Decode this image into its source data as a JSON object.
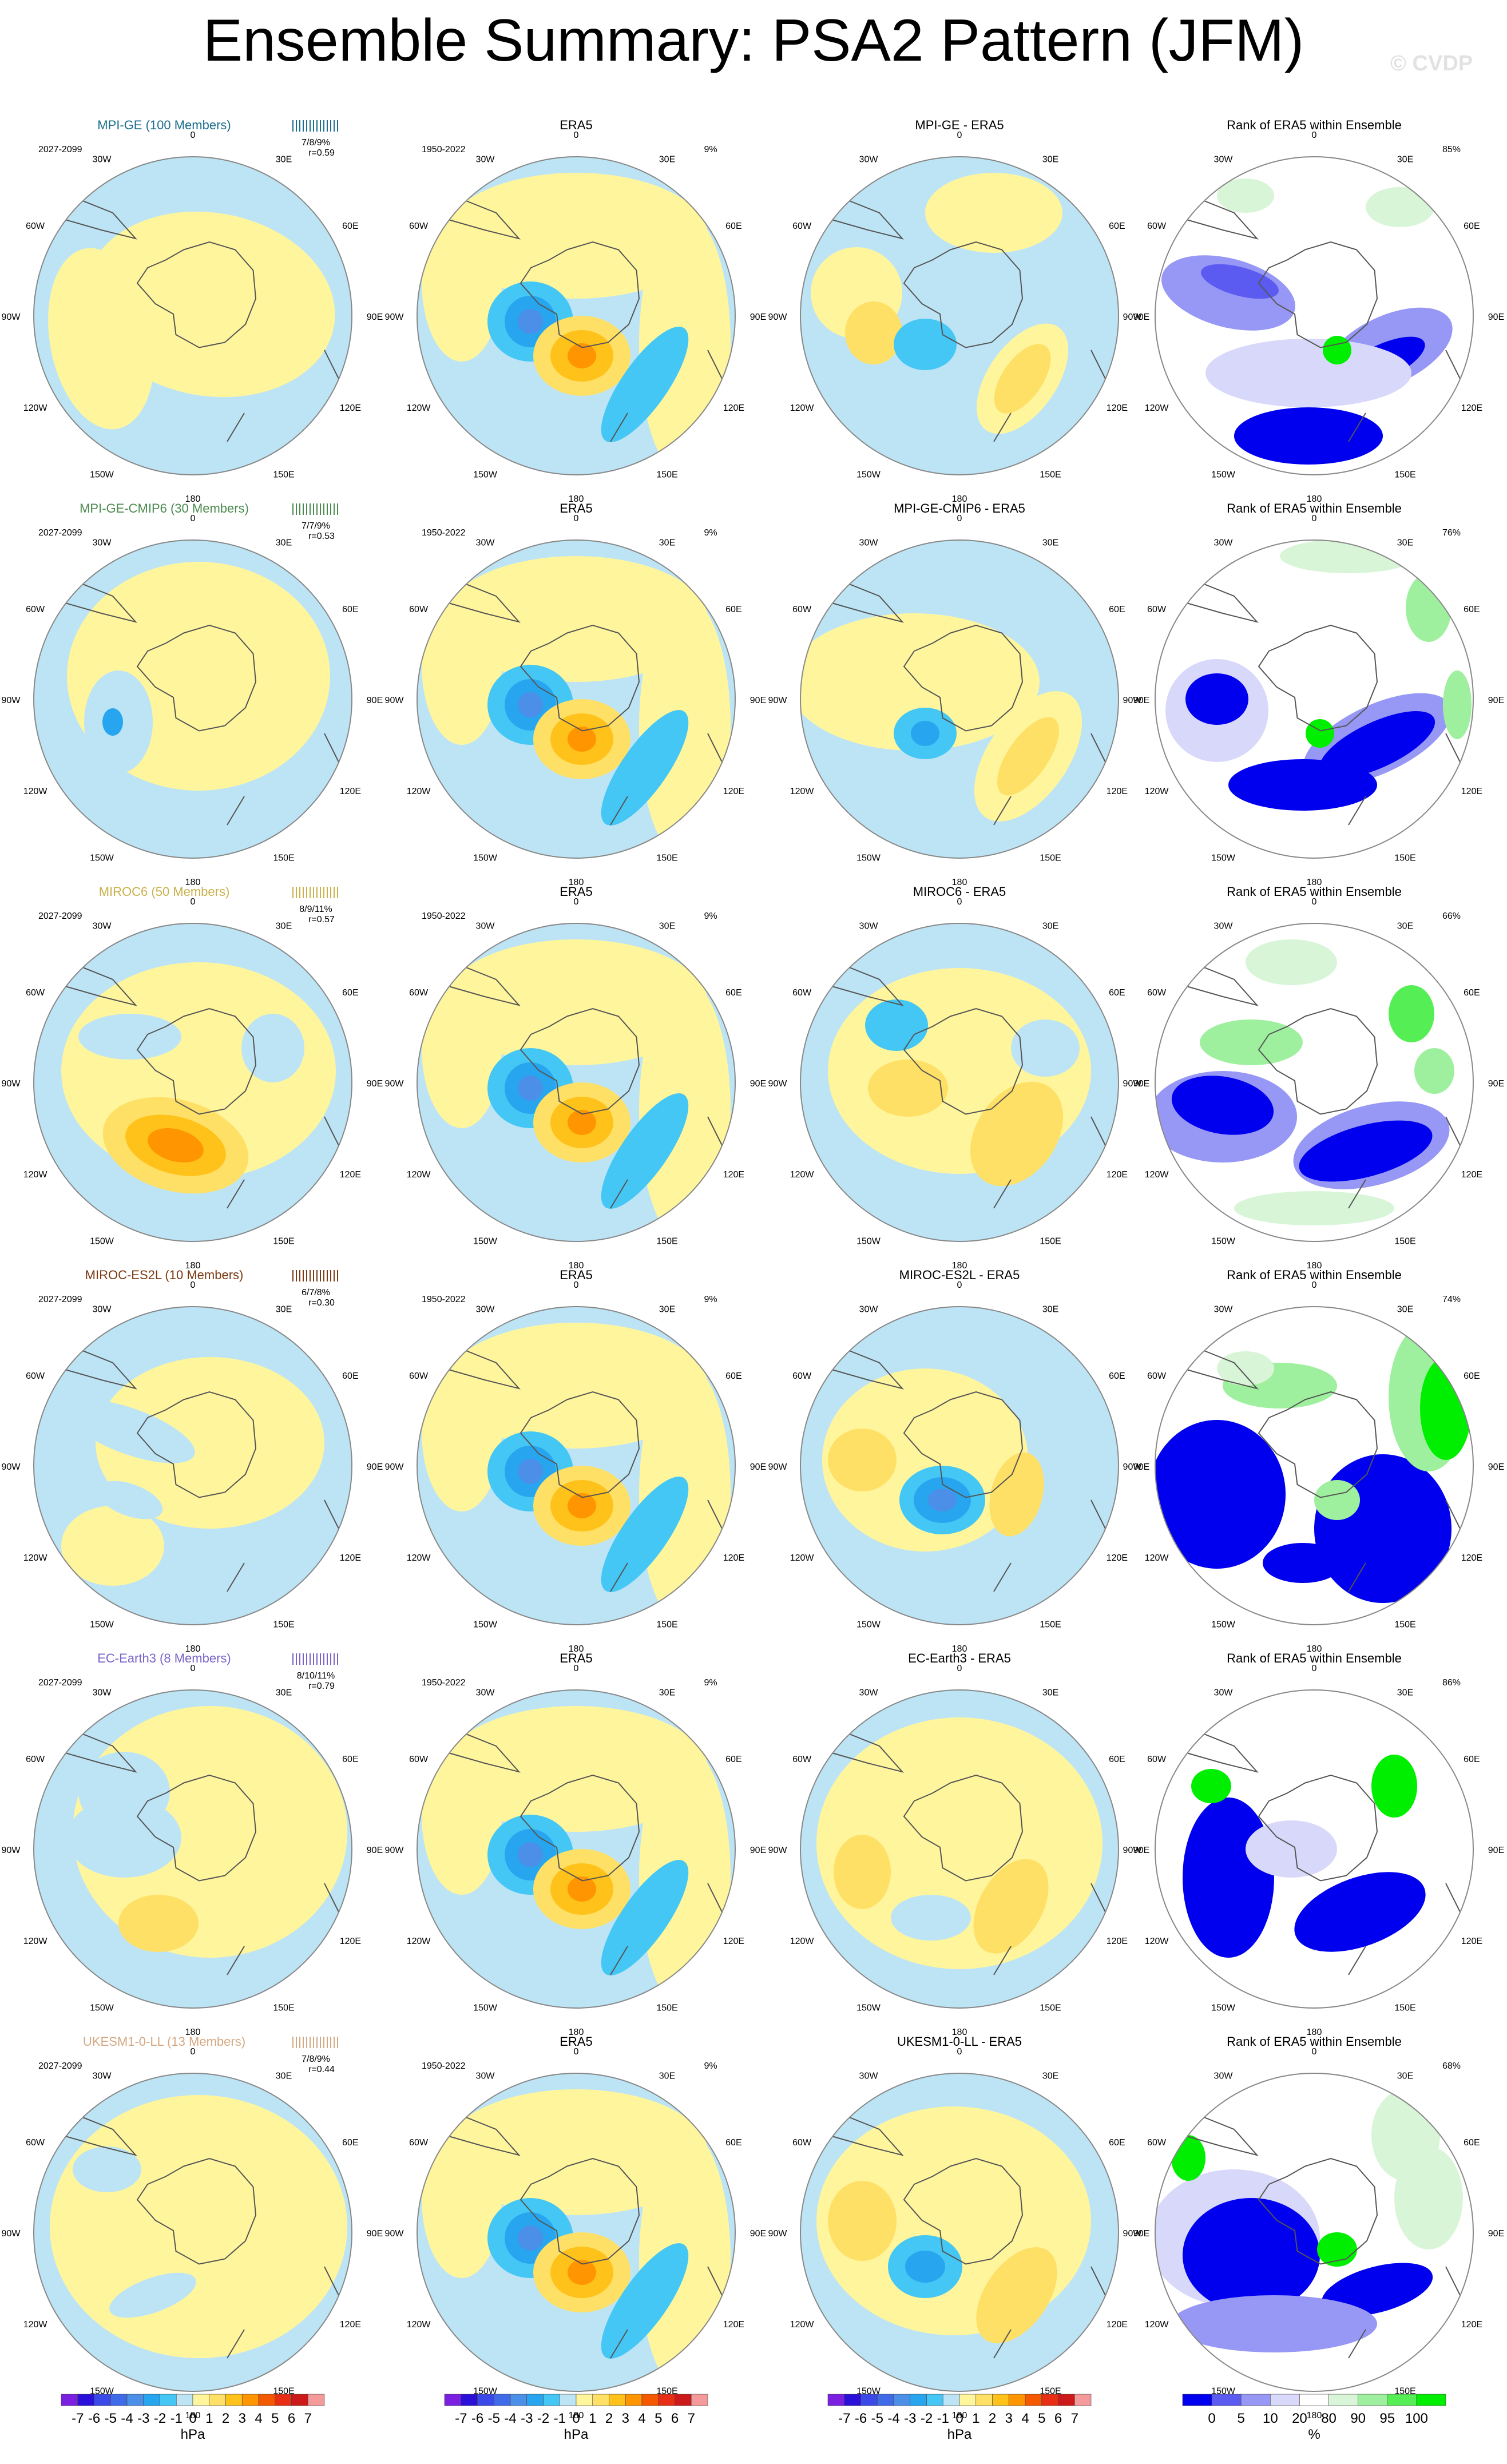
{
  "title": "Ensemble Summary: PSA2 Pattern (JFM)",
  "watermark": "© CVDP",
  "lon_labels": [
    "0",
    "30E",
    "60E",
    "90E",
    "120E",
    "150E",
    "180",
    "150W",
    "120W",
    "90W",
    "60W",
    "30W"
  ],
  "rows": [
    {
      "model": "MPI-GE (100 Members)",
      "color": "#1a6e8e",
      "model_period": "2027-2099",
      "obs_title": "ERA5",
      "obs_period": "1950-2022",
      "obs_pct": "9%",
      "diff_title": "MPI-GE - ERA5",
      "rank_title": "Rank of ERA5 within Ensemble",
      "rank_pct": "85%",
      "stats": "7/8/9%",
      "corr": "r=0.59"
    },
    {
      "model": "MPI-GE-CMIP6 (30 Members)",
      "color": "#4a8a4e",
      "model_period": "2027-2099",
      "obs_title": "ERA5",
      "obs_period": "1950-2022",
      "obs_pct": "9%",
      "diff_title": "MPI-GE-CMIP6 - ERA5",
      "rank_title": "Rank of ERA5 within Ensemble",
      "rank_pct": "76%",
      "stats": "7/7/9%",
      "corr": "r=0.53"
    },
    {
      "model": "MIROC6 (50 Members)",
      "color": "#c9b04a",
      "model_period": "2027-2099",
      "obs_title": "ERA5",
      "obs_period": "1950-2022",
      "obs_pct": "9%",
      "diff_title": "MIROC6 - ERA5",
      "rank_title": "Rank of ERA5 within Ensemble",
      "rank_pct": "66%",
      "stats": "8/9/11%",
      "corr": "r=0.57"
    },
    {
      "model": "MIROC-ES2L (10 Members)",
      "color": "#7a3a14",
      "model_period": "2027-2099",
      "obs_title": "ERA5",
      "obs_period": "1950-2022",
      "obs_pct": "9%",
      "diff_title": "MIROC-ES2L - ERA5",
      "rank_title": "Rank of ERA5 within Ensemble",
      "rank_pct": "74%",
      "stats": "6/7/8%",
      "corr": "r=0.30"
    },
    {
      "model": "EC-Earth3 (8 Members)",
      "color": "#7a62c8",
      "model_period": "2027-2099",
      "obs_title": "ERA5",
      "obs_period": "1950-2022",
      "obs_pct": "9%",
      "diff_title": "EC-Earth3 - ERA5",
      "rank_title": "Rank of ERA5 within Ensemble",
      "rank_pct": "86%",
      "stats": "8/10/11%",
      "corr": "r=0.79"
    },
    {
      "model": "UKESM1-0-LL (13 Members)",
      "color": "#d4a882",
      "model_period": "2027-2099",
      "obs_title": "ERA5",
      "obs_period": "1950-2022",
      "obs_pct": "9%",
      "diff_title": "UKESM1-0-LL - ERA5",
      "rank_title": "Rank of ERA5 within Ensemble",
      "rank_pct": "68%",
      "stats": "7/8/9%",
      "corr": "r=0.44"
    }
  ],
  "chart_data": {
    "type": "heatmap",
    "projection": "south polar stereographic",
    "variable": "PSA2 Pattern (JFM)",
    "hpa_colorbar": {
      "unit": "hPa",
      "tick_labels": [
        "-7",
        "-6",
        "-5",
        "-4",
        "-3",
        "-2",
        "-1",
        "0",
        "1",
        "2",
        "3",
        "4",
        "5",
        "6",
        "7"
      ],
      "colors": [
        "#7b20e0",
        "#2a10d8",
        "#3b49e8",
        "#3f6ae8",
        "#4c8fe8",
        "#27a6ef",
        "#44c7f4",
        "#bde4f5",
        "#fff59d",
        "#ffe066",
        "#ffc21a",
        "#ff9500",
        "#f45900",
        "#e82e14",
        "#cc1a1a",
        "#f49a9a"
      ]
    },
    "rank_colorbar": {
      "unit": "%",
      "tick_labels": [
        "0",
        "5",
        "10",
        "20",
        "80",
        "90",
        "95",
        "100"
      ],
      "colors": [
        "#0000ee",
        "#5b5bf2",
        "#9797f5",
        "#d8d8fa",
        "#ffffff",
        "#d8f5d8",
        "#9ef09e",
        "#55ee55",
        "#00ee00"
      ]
    },
    "colorbar_labels": [
      "hPa",
      "hPa",
      "hPa",
      "%"
    ]
  }
}
